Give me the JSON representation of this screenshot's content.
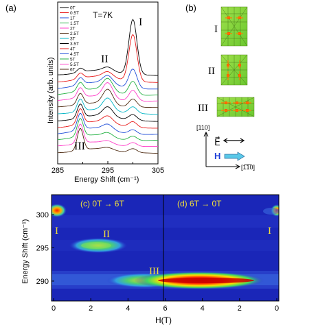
{
  "panel_a": {
    "label": "(a)",
    "temperature": "T=7K",
    "ylabel": "Intensity (arb. units)",
    "xlabel": "Energy Shift (cm⁻¹)",
    "peak_labels": [
      "I",
      "II",
      "III"
    ]
  },
  "panel_b": {
    "label": "(b)",
    "mode_labels": [
      "I",
      "II",
      "III"
    ],
    "axis_110": "[110]",
    "axis_1m10": "[1̅1̅0]",
    "field_E": "E⃗",
    "field_H": "H"
  },
  "panel_c": {
    "label_c": "(c) 0T → 6T",
    "label_d": "(d) 6T → 0T",
    "ylabel": "Energy Shift (cm⁻¹)",
    "xlabel": "H(T)",
    "xticks": [
      "0",
      "2",
      "4",
      "6",
      "4",
      "2",
      "0"
    ],
    "yticks": [
      "290",
      "295",
      "300"
    ],
    "region_labels": [
      "I",
      "II",
      "III",
      "I"
    ]
  },
  "colors": {
    "background_map": "#1a26b8",
    "curve_colors": [
      "#000000",
      "#e81818",
      "#1f4ed8",
      "#20b040",
      "#ff3cc8",
      "#4d2a10",
      "#00b5c5",
      "#000000",
      "#e81818",
      "#1f4ed8",
      "#20b040",
      "#ff3cc8",
      "#4d2a10",
      "#00b5c5"
    ]
  },
  "chart_data": [
    {
      "type": "line",
      "title": "T=7K",
      "xlabel": "Energy Shift (cm⁻¹)",
      "ylabel": "Intensity (arb. units)",
      "xlim": [
        285,
        305
      ],
      "xticks": [
        285,
        295,
        305
      ],
      "legend": [
        "0T",
        "0.5T",
        "1T",
        "1.5T",
        "2T",
        "2.5T",
        "3T",
        "3.5T",
        "4T",
        "4.5T",
        "5T",
        "5.5T",
        "6T"
      ],
      "legend_position": "top-left",
      "peaks_cm": [
        300,
        295,
        289.5
      ],
      "series_amplitudes": {
        "peak_I": [
          1.0,
          0.85,
          0.35,
          0.25,
          0.2,
          0.15,
          0.12,
          0.1,
          0.1,
          0.08,
          0.08,
          0.07,
          0.07
        ],
        "peak_II": [
          0.15,
          0.2,
          0.3,
          0.45,
          0.55,
          0.55,
          0.45,
          0.35,
          0.25,
          0.2,
          0.15,
          0.1,
          0.08
        ],
        "peak_III": [
          0.15,
          0.2,
          0.25,
          0.3,
          0.35,
          0.4,
          0.45,
          0.5,
          0.55,
          0.6,
          0.65,
          0.7,
          0.8
        ]
      }
    },
    {
      "type": "heatmap",
      "xlabel": "H(T)",
      "ylabel": "Energy Shift (cm⁻¹)",
      "x_sweep": [
        "0",
        "2",
        "4",
        "6",
        "4",
        "2",
        "0"
      ],
      "ylim": [
        287,
        303
      ],
      "yticks": [
        290,
        295,
        300
      ],
      "features": [
        {
          "label": "I",
          "H_range": [
            0,
            0.5
          ],
          "energy": 300.3,
          "sweep": "up",
          "intensity": "high"
        },
        {
          "label": "II",
          "H_range": [
            1.0,
            3.8
          ],
          "energy": 294.8,
          "sweep": "up",
          "intensity": "medium"
        },
        {
          "label": "III",
          "H_range": [
            3,
            6
          ],
          "energy": 289.5,
          "sweep": "up",
          "intensity": "high"
        },
        {
          "label": "III",
          "H_range": [
            6,
            0.5
          ],
          "energy": 289.5,
          "sweep": "down",
          "intensity": "very high"
        },
        {
          "label": "I",
          "H_range": [
            0.2,
            0
          ],
          "energy": 300.3,
          "sweep": "down",
          "intensity": "medium"
        }
      ]
    }
  ]
}
